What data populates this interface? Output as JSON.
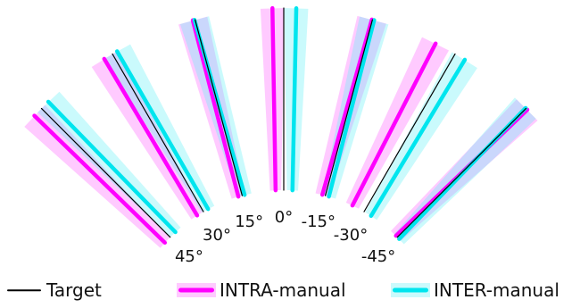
{
  "diagram": {
    "groups": [
      {
        "target_deg": 45,
        "label": "45°",
        "intra_deg": 45.8,
        "inter_deg": 44.3,
        "intra_spread": 5,
        "inter_spread": 5
      },
      {
        "target_deg": 30,
        "label": "30°",
        "intra_deg": 30.7,
        "inter_deg": 30.0,
        "intra_spread": 5,
        "inter_spread": 5
      },
      {
        "target_deg": 15,
        "label": "15°",
        "intra_deg": 14.5,
        "inter_deg": 16.0,
        "intra_spread": 5,
        "inter_spread": 5
      },
      {
        "target_deg": 0,
        "label": "0°",
        "intra_deg": 1.0,
        "inter_deg": -1.2,
        "intra_spread": 4,
        "inter_spread": 4
      },
      {
        "target_deg": -15,
        "label": "-15°",
        "intra_deg": -15.8,
        "inter_deg": -14.4,
        "intra_spread": 5,
        "inter_spread": 5
      },
      {
        "target_deg": -30,
        "label": "-30°",
        "intra_deg": -27.2,
        "inter_deg": -31.0,
        "intra_spread": 5,
        "inter_spread": 5
      },
      {
        "target_deg": -45,
        "label": "-45°",
        "intra_deg": -46.2,
        "inter_deg": -44.0,
        "intra_spread": 5,
        "inter_spread": 5
      }
    ]
  },
  "legend": {
    "target": "Target",
    "intra": "INTRA-manual",
    "inter": "INTER-manual"
  },
  "colors": {
    "target": "#000000",
    "intra": "#ff00ff",
    "intra_band": "#ff66ff",
    "inter": "#00e5ee",
    "inter_band": "#66f2f5"
  }
}
